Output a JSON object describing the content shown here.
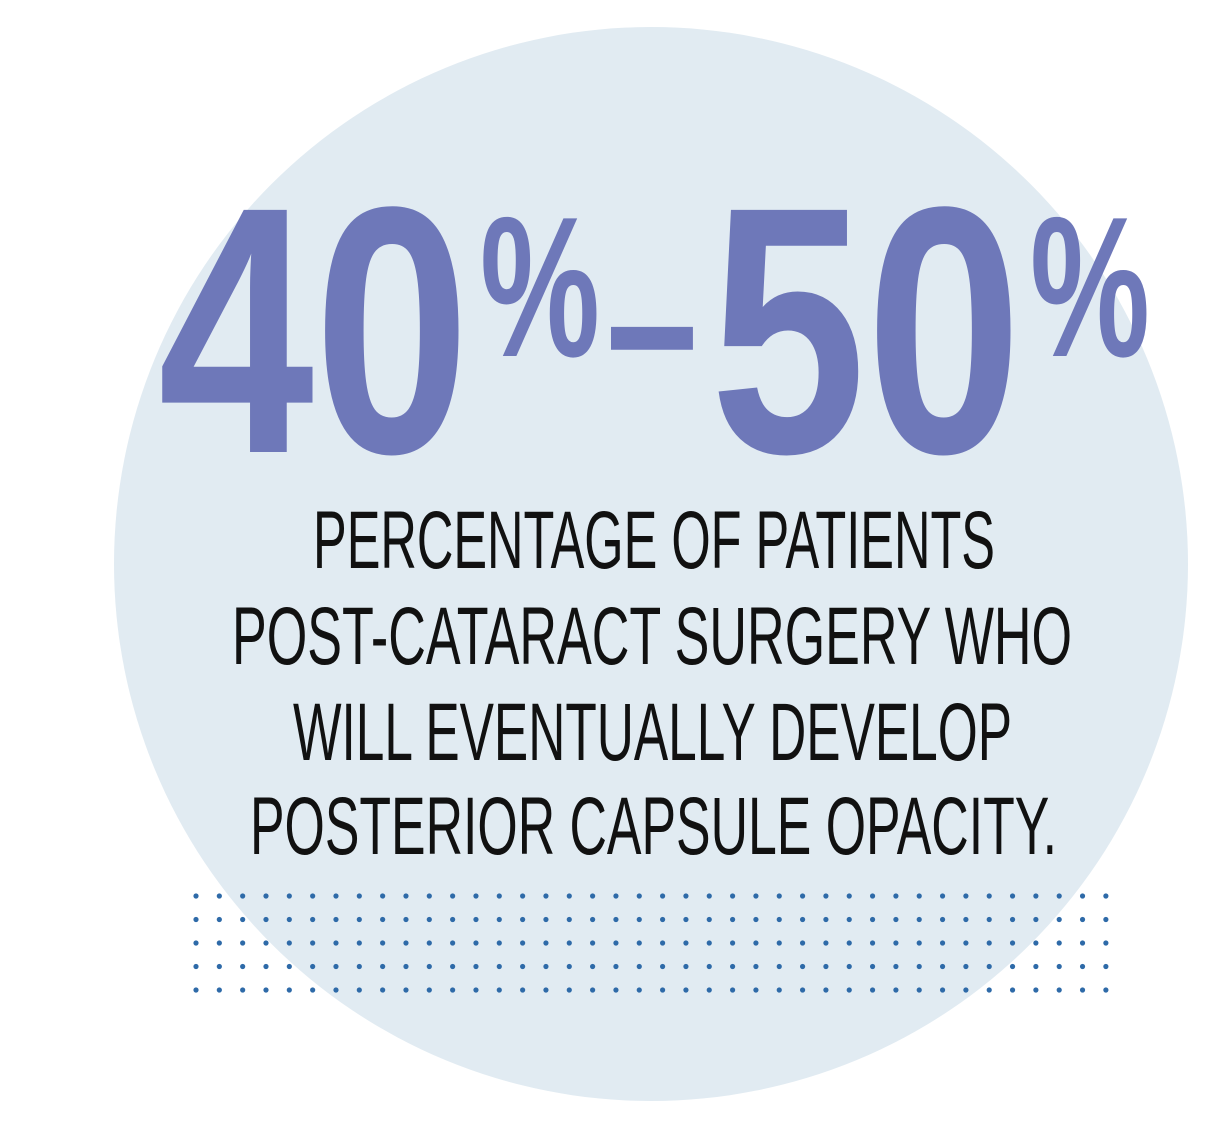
{
  "stat": {
    "low": "40",
    "low_unit": "%",
    "separator": "–",
    "high": "50",
    "high_unit": "%"
  },
  "description": [
    "PERCENTAGE OF PATIENTS",
    "POST-CATARACT SURGERY WHO",
    "WILL EVENTUALLY DEVELOP",
    "POSTERIOR CAPSULE OPACITY."
  ]
}
